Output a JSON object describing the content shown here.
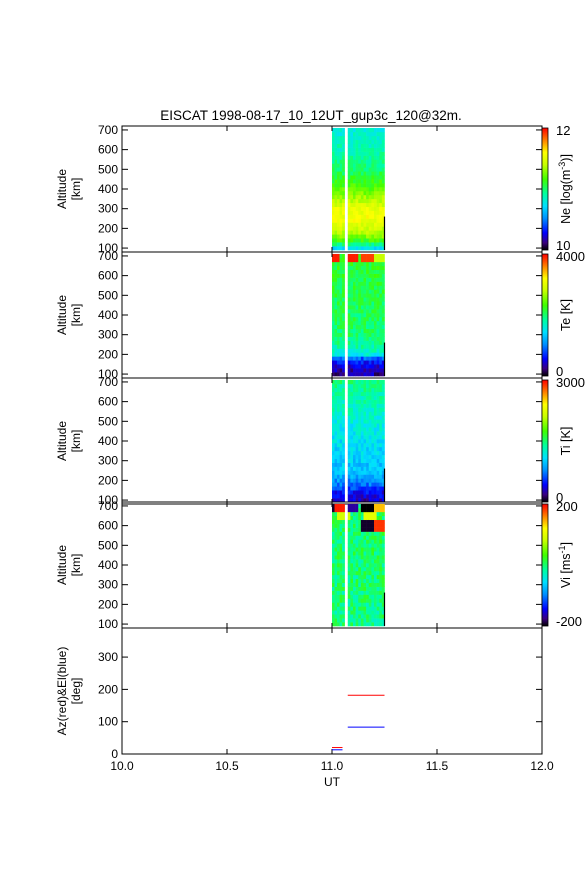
{
  "title": "EISCAT 1998-08-17_10_12UT_gup3c_120@32m.",
  "chart_data": {
    "type": "heatmap",
    "xlabel": "UT",
    "xlim": [
      10.0,
      12.0
    ],
    "x_ticks": [
      "10.0",
      "10.5",
      "11.0",
      "11.5",
      "12.0"
    ],
    "time_blocks": [
      [
        11.0,
        11.06
      ],
      [
        11.075,
        11.25
      ]
    ],
    "panels": [
      {
        "id": "ne",
        "ylabel": [
          "Altitude",
          "[km]"
        ],
        "ylim": [
          80,
          720
        ],
        "y_ticks": [
          "100",
          "200",
          "300",
          "400",
          "500",
          "600",
          "700"
        ],
        "colorbar": {
          "label": "Ne [log(m-3)]",
          "label_main": "Ne [log(m",
          "label_sup": "-3",
          "label_end": ")]",
          "min": 10,
          "max": 12,
          "tick_top": "12",
          "tick_bottom": "10"
        },
        "profile": [
          [
            100,
            0.36
          ],
          [
            120,
            0.48
          ],
          [
            150,
            0.62
          ],
          [
            200,
            0.72
          ],
          [
            250,
            0.78
          ],
          [
            300,
            0.76
          ],
          [
            350,
            0.68
          ],
          [
            400,
            0.6
          ],
          [
            500,
            0.5
          ],
          [
            600,
            0.44
          ],
          [
            700,
            0.4
          ]
        ],
        "noise": 0.04,
        "special": []
      },
      {
        "id": "te",
        "ylabel": [
          "Altitude",
          "[km]"
        ],
        "ylim": [
          80,
          720
        ],
        "y_ticks": [
          "100",
          "200",
          "300",
          "400",
          "500",
          "600",
          "700"
        ],
        "colorbar": {
          "label": "Te [K]",
          "label_main": "Te [K]",
          "label_sup": "",
          "label_end": "",
          "min": 0,
          "max": 4000,
          "tick_top": "4000",
          "tick_bottom": "0"
        },
        "profile": [
          [
            100,
            0.08
          ],
          [
            130,
            0.1
          ],
          [
            160,
            0.16
          ],
          [
            180,
            0.22
          ],
          [
            200,
            0.4
          ],
          [
            250,
            0.46
          ],
          [
            300,
            0.5
          ],
          [
            500,
            0.52
          ],
          [
            700,
            0.55
          ]
        ],
        "noise": 0.05,
        "special": [
          [
            11.0,
            700,
            0.98
          ],
          [
            11.09,
            700,
            0.98
          ],
          [
            11.16,
            700,
            0.95
          ],
          [
            11.22,
            700,
            0.7
          ]
        ]
      },
      {
        "id": "ti",
        "ylabel": [
          "Altitude",
          "[km]"
        ],
        "ylim": [
          80,
          720
        ],
        "y_ticks": [
          "100",
          "200",
          "300",
          "400",
          "500",
          "600",
          "700"
        ],
        "colorbar": {
          "label": "Ti [K]",
          "label_main": "Ti [K]",
          "label_sup": "",
          "label_end": "",
          "min": 0,
          "max": 3000,
          "tick_top": "3000",
          "tick_bottom": "0"
        },
        "profile": [
          [
            100,
            0.1
          ],
          [
            140,
            0.14
          ],
          [
            180,
            0.24
          ],
          [
            220,
            0.3
          ],
          [
            300,
            0.34
          ],
          [
            400,
            0.37
          ],
          [
            500,
            0.4
          ],
          [
            600,
            0.44
          ],
          [
            700,
            0.48
          ]
        ],
        "noise": 0.05,
        "special": []
      },
      {
        "id": "vi",
        "ylabel": [
          "Altitude",
          "[km]"
        ],
        "ylim": [
          80,
          720
        ],
        "y_ticks": [
          "100",
          "200",
          "300",
          "400",
          "500",
          "600",
          "700"
        ],
        "colorbar": {
          "label": "Vi [ms-1]",
          "label_main": "Vi [ms",
          "label_sup": "-1",
          "label_end": "]",
          "min": -200,
          "max": 200,
          "tick_top": "200",
          "tick_bottom": "-200"
        },
        "profile": [
          [
            100,
            0.48
          ],
          [
            300,
            0.49
          ],
          [
            500,
            0.5
          ],
          [
            700,
            0.5
          ]
        ],
        "noise": 0.07,
        "special": [
          [
            11.0,
            700,
            0.02
          ],
          [
            11.04,
            700,
            0.98
          ],
          [
            11.09,
            700,
            0.08
          ],
          [
            11.16,
            700,
            0.0
          ],
          [
            11.22,
            700,
            0.85
          ],
          [
            11.16,
            600,
            0.02
          ],
          [
            11.22,
            600,
            0.96
          ],
          [
            11.05,
            650,
            0.72
          ],
          [
            11.18,
            650,
            0.75
          ]
        ]
      }
    ],
    "az_el_panel": {
      "ylabel": [
        "Az(red)&El(blue)",
        "[deg]"
      ],
      "ylim": [
        0,
        390
      ],
      "y_ticks": [
        "0",
        "100",
        "200",
        "300"
      ],
      "series": [
        {
          "name": "Az",
          "color": "#ff0000",
          "segments": [
            [
              [
                11.0,
                20
              ],
              [
                11.05,
                20
              ]
            ],
            [
              [
                11.075,
                182
              ],
              [
                11.25,
                182
              ]
            ]
          ]
        },
        {
          "name": "El",
          "color": "#0000ff",
          "segments": [
            [
              [
                11.0,
                13
              ],
              [
                11.05,
                13
              ]
            ],
            [
              [
                11.075,
                83
              ],
              [
                11.25,
                83
              ]
            ]
          ]
        }
      ]
    }
  }
}
